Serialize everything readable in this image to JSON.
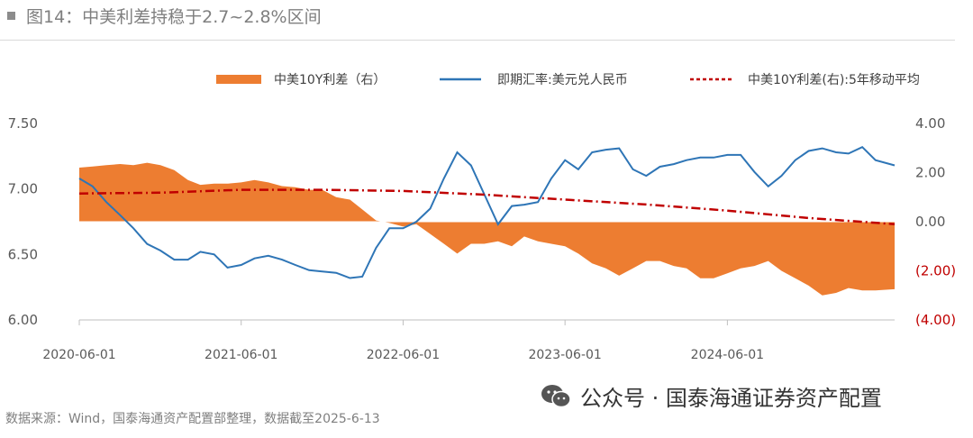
{
  "header": {
    "title": "图14：中美利差持稳于2.7~2.8%区间"
  },
  "footer": {
    "source": "数据来源：Wind，国泰海通资产配置部整理，数据截至2025-6-13",
    "brand": "公众号 · 国泰海通证券资产配置",
    "brand_icon": "wechat-icon"
  },
  "colors": {
    "spread_fill": "#ed7d31",
    "fx_line": "#2e75b6",
    "ma_line": "#c00000",
    "negative_tick": "#c00000",
    "axis": "#bfbfbf"
  },
  "chart_data": {
    "type": "line",
    "legend": [
      {
        "name": "中美10Y利差（右）",
        "style": "area",
        "color": "#ed7d31"
      },
      {
        "name": "即期汇率:美元兑人民币",
        "style": "line",
        "color": "#2e75b6"
      },
      {
        "name": "中美10Y利差(右):5年移动平均",
        "style": "dashdot",
        "color": "#c00000"
      }
    ],
    "legend_position": "top",
    "x_ticks": [
      "2020-06-01",
      "2021-06-01",
      "2022-06-01",
      "2023-06-01",
      "2024-06-01"
    ],
    "x_range": [
      "2020-06-01",
      "2025-06-13"
    ],
    "y_left": {
      "ticks": [
        "7.50",
        "7.00",
        "6.50",
        "6.00"
      ],
      "range": [
        6.0,
        7.5
      ]
    },
    "y_right": {
      "ticks": [
        "4.00",
        "2.00",
        "0.00",
        "(2.00)",
        "(4.00)"
      ],
      "range": [
        -4.0,
        4.0
      ]
    },
    "grid": false,
    "series": [
      {
        "name": "即期汇率:美元兑人民币",
        "axis": "left",
        "points": [
          [
            "2020-06-01",
            7.08
          ],
          [
            "2020-07-01",
            7.02
          ],
          [
            "2020-08-01",
            6.9
          ],
          [
            "2020-09-01",
            6.8
          ],
          [
            "2020-10-01",
            6.7
          ],
          [
            "2020-11-01",
            6.58
          ],
          [
            "2020-12-01",
            6.53
          ],
          [
            "2021-01-01",
            6.46
          ],
          [
            "2021-02-01",
            6.46
          ],
          [
            "2021-03-01",
            6.52
          ],
          [
            "2021-04-01",
            6.5
          ],
          [
            "2021-05-01",
            6.4
          ],
          [
            "2021-06-01",
            6.42
          ],
          [
            "2021-07-01",
            6.47
          ],
          [
            "2021-08-01",
            6.49
          ],
          [
            "2021-09-01",
            6.46
          ],
          [
            "2021-10-01",
            6.42
          ],
          [
            "2021-11-01",
            6.38
          ],
          [
            "2021-12-01",
            6.37
          ],
          [
            "2022-01-01",
            6.36
          ],
          [
            "2022-02-01",
            6.32
          ],
          [
            "2022-03-01",
            6.33
          ],
          [
            "2022-04-01",
            6.55
          ],
          [
            "2022-05-01",
            6.7
          ],
          [
            "2022-06-01",
            6.7
          ],
          [
            "2022-07-01",
            6.75
          ],
          [
            "2022-08-01",
            6.85
          ],
          [
            "2022-09-01",
            7.08
          ],
          [
            "2022-10-01",
            7.28
          ],
          [
            "2022-11-01",
            7.18
          ],
          [
            "2022-12-01",
            6.96
          ],
          [
            "2023-01-01",
            6.73
          ],
          [
            "2023-02-01",
            6.87
          ],
          [
            "2023-03-01",
            6.88
          ],
          [
            "2023-04-01",
            6.9
          ],
          [
            "2023-05-01",
            7.08
          ],
          [
            "2023-06-01",
            7.22
          ],
          [
            "2023-07-01",
            7.15
          ],
          [
            "2023-08-01",
            7.28
          ],
          [
            "2023-09-01",
            7.3
          ],
          [
            "2023-10-01",
            7.31
          ],
          [
            "2023-11-01",
            7.15
          ],
          [
            "2023-12-01",
            7.1
          ],
          [
            "2024-01-01",
            7.17
          ],
          [
            "2024-02-01",
            7.19
          ],
          [
            "2024-03-01",
            7.22
          ],
          [
            "2024-04-01",
            7.24
          ],
          [
            "2024-05-01",
            7.24
          ],
          [
            "2024-06-01",
            7.26
          ],
          [
            "2024-07-01",
            7.26
          ],
          [
            "2024-08-01",
            7.13
          ],
          [
            "2024-09-01",
            7.02
          ],
          [
            "2024-10-01",
            7.1
          ],
          [
            "2024-11-01",
            7.22
          ],
          [
            "2024-12-01",
            7.29
          ],
          [
            "2025-01-01",
            7.31
          ],
          [
            "2025-02-01",
            7.28
          ],
          [
            "2025-03-01",
            7.27
          ],
          [
            "2025-04-01",
            7.32
          ],
          [
            "2025-05-01",
            7.22
          ],
          [
            "2025-06-13",
            7.18
          ]
        ]
      },
      {
        "name": "中美10Y利差（右）",
        "axis": "right",
        "points": [
          [
            "2020-06-01",
            2.2
          ],
          [
            "2020-07-01",
            2.25
          ],
          [
            "2020-08-01",
            2.3
          ],
          [
            "2020-09-01",
            2.35
          ],
          [
            "2020-10-01",
            2.3
          ],
          [
            "2020-11-01",
            2.4
          ],
          [
            "2020-12-01",
            2.3
          ],
          [
            "2021-01-01",
            2.1
          ],
          [
            "2021-02-01",
            1.7
          ],
          [
            "2021-03-01",
            1.5
          ],
          [
            "2021-04-01",
            1.55
          ],
          [
            "2021-05-01",
            1.55
          ],
          [
            "2021-06-01",
            1.6
          ],
          [
            "2021-07-01",
            1.7
          ],
          [
            "2021-08-01",
            1.6
          ],
          [
            "2021-09-01",
            1.45
          ],
          [
            "2021-10-01",
            1.4
          ],
          [
            "2021-11-01",
            1.3
          ],
          [
            "2021-12-01",
            1.3
          ],
          [
            "2022-01-01",
            1.0
          ],
          [
            "2022-02-01",
            0.9
          ],
          [
            "2022-03-01",
            0.5
          ],
          [
            "2022-04-01",
            0.05
          ],
          [
            "2022-05-01",
            -0.05
          ],
          [
            "2022-06-01",
            -0.2
          ],
          [
            "2022-07-01",
            -0.1
          ],
          [
            "2022-08-01",
            -0.5
          ],
          [
            "2022-09-01",
            -0.9
          ],
          [
            "2022-10-01",
            -1.3
          ],
          [
            "2022-11-01",
            -0.9
          ],
          [
            "2022-12-01",
            -0.9
          ],
          [
            "2023-01-01",
            -0.8
          ],
          [
            "2023-02-01",
            -1.0
          ],
          [
            "2023-03-01",
            -0.6
          ],
          [
            "2023-04-01",
            -0.8
          ],
          [
            "2023-05-01",
            -0.9
          ],
          [
            "2023-06-01",
            -1.0
          ],
          [
            "2023-07-01",
            -1.3
          ],
          [
            "2023-08-01",
            -1.7
          ],
          [
            "2023-09-01",
            -1.9
          ],
          [
            "2023-10-01",
            -2.2
          ],
          [
            "2023-11-01",
            -1.9
          ],
          [
            "2023-12-01",
            -1.6
          ],
          [
            "2024-01-01",
            -1.6
          ],
          [
            "2024-02-01",
            -1.8
          ],
          [
            "2024-03-01",
            -1.9
          ],
          [
            "2024-04-01",
            -2.3
          ],
          [
            "2024-05-01",
            -2.3
          ],
          [
            "2024-06-01",
            -2.1
          ],
          [
            "2024-07-01",
            -1.9
          ],
          [
            "2024-08-01",
            -1.8
          ],
          [
            "2024-09-01",
            -1.6
          ],
          [
            "2024-10-01",
            -2.0
          ],
          [
            "2024-11-01",
            -2.3
          ],
          [
            "2024-12-01",
            -2.6
          ],
          [
            "2025-01-01",
            -3.0
          ],
          [
            "2025-02-01",
            -2.9
          ],
          [
            "2025-03-01",
            -2.7
          ],
          [
            "2025-04-01",
            -2.8
          ],
          [
            "2025-05-01",
            -2.8
          ],
          [
            "2025-06-13",
            -2.75
          ]
        ]
      },
      {
        "name": "中美10Y利差(右):5年移动平均",
        "axis": "right",
        "points": [
          [
            "2020-06-01",
            1.15
          ],
          [
            "2020-12-01",
            1.18
          ],
          [
            "2021-06-01",
            1.3
          ],
          [
            "2021-12-01",
            1.3
          ],
          [
            "2022-06-01",
            1.25
          ],
          [
            "2022-12-01",
            1.1
          ],
          [
            "2023-06-01",
            0.9
          ],
          [
            "2023-12-01",
            0.7
          ],
          [
            "2024-06-01",
            0.45
          ],
          [
            "2024-12-01",
            0.15
          ],
          [
            "2025-06-13",
            -0.1
          ]
        ]
      }
    ]
  }
}
